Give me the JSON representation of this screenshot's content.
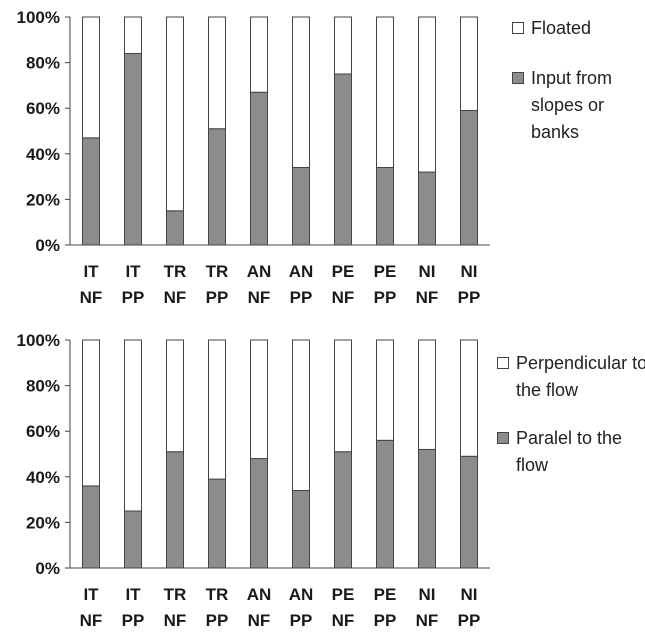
{
  "chart_data": [
    {
      "type": "bar",
      "stacked": true,
      "percent": true,
      "categories": [
        [
          "IT",
          "NF"
        ],
        [
          "IT",
          "PP"
        ],
        [
          "TR",
          "NF"
        ],
        [
          "TR",
          "PP"
        ],
        [
          "AN",
          "NF"
        ],
        [
          "AN",
          "PP"
        ],
        [
          "PE",
          "NF"
        ],
        [
          "PE",
          "PP"
        ],
        [
          "NI",
          "NF"
        ],
        [
          "NI",
          "PP"
        ]
      ],
      "yticks": [
        "0%",
        "20%",
        "40%",
        "60%",
        "80%",
        "100%"
      ],
      "ylim": [
        0,
        100
      ],
      "legend_position": "right",
      "series": [
        {
          "name": "Input from slopes or banks",
          "color": "#8c8c8c",
          "values": [
            47,
            84,
            15,
            51,
            67,
            34,
            75,
            34,
            32,
            59
          ]
        },
        {
          "name": "Floated",
          "color": "#ffffff",
          "values": [
            53,
            16,
            85,
            49,
            33,
            66,
            25,
            66,
            68,
            41
          ]
        }
      ],
      "legend_order": [
        1,
        0
      ]
    },
    {
      "type": "bar",
      "stacked": true,
      "percent": true,
      "categories": [
        [
          "IT",
          "NF"
        ],
        [
          "IT",
          "PP"
        ],
        [
          "TR",
          "NF"
        ],
        [
          "TR",
          "PP"
        ],
        [
          "AN",
          "NF"
        ],
        [
          "AN",
          "PP"
        ],
        [
          "PE",
          "NF"
        ],
        [
          "PE",
          "PP"
        ],
        [
          "NI",
          "NF"
        ],
        [
          "NI",
          "PP"
        ]
      ],
      "yticks": [
        "0%",
        "20%",
        "40%",
        "60%",
        "80%",
        "100%"
      ],
      "ylim": [
        0,
        100
      ],
      "legend_position": "right",
      "series": [
        {
          "name": "Paralel to the flow",
          "color": "#8c8c8c",
          "values": [
            36,
            25,
            51,
            39,
            48,
            34,
            51,
            56,
            52,
            49
          ]
        },
        {
          "name": "Perpendicular to the flow",
          "color": "#ffffff",
          "values": [
            64,
            75,
            49,
            61,
            52,
            66,
            49,
            44,
            48,
            51
          ]
        }
      ],
      "legend_order": [
        1,
        0
      ]
    }
  ]
}
